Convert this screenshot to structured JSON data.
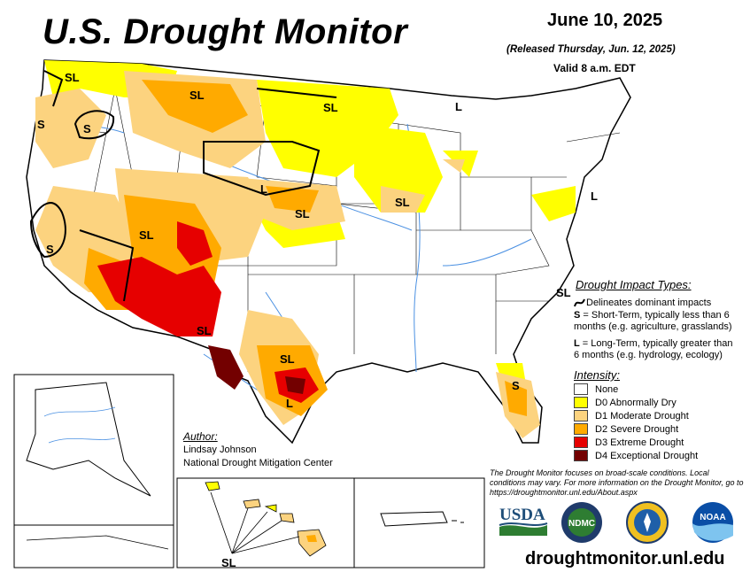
{
  "header": {
    "title": "U.S. Drought Monitor",
    "date": "June 10, 2025",
    "released": "(Released Thursday, Jun. 12, 2025)",
    "valid": "Valid 8 a.m. EDT"
  },
  "impact_legend": {
    "title": "Drought Impact Types:",
    "line_desc": "Delineates dominant impacts",
    "s_key": "S",
    "s_desc": " = Short-Term, typically less than 6 months (e.g. agriculture, grasslands)",
    "l_key": "L",
    "l_desc": " = Long-Term, typically greater than 6 months (e.g. hydrology, ecology)"
  },
  "intensity_legend": {
    "title": "Intensity:",
    "items": [
      {
        "label": "None",
        "color": "#ffffff"
      },
      {
        "label": "D0 Abnormally Dry",
        "color": "#ffff00"
      },
      {
        "label": "D1 Moderate Drought",
        "color": "#fcd37f"
      },
      {
        "label": "D2 Severe Drought",
        "color": "#ffaa00"
      },
      {
        "label": "D3 Extreme Drought",
        "color": "#e60000"
      },
      {
        "label": "D4 Exceptional Drought",
        "color": "#730000"
      }
    ]
  },
  "author": {
    "title": "Author:",
    "name": "Lindsay Johnson",
    "org": "National Drought Mitigation Center"
  },
  "note": "The Drought Monitor focuses on broad-scale conditions. Local conditions may vary. For more information on the Drought Monitor, go to https://droughtmonitor.unl.edu/About.aspx",
  "url": "droughtmonitor.unl.edu",
  "logos": {
    "usda": "USDA",
    "ndmc": "NDMC",
    "noaa": "NOAA"
  },
  "map_labels": {
    "sl_wa": "SL",
    "s_wa": "S",
    "s_or": "S",
    "sl_mt": "SL",
    "sl_mn": "SL",
    "l_mi": "L",
    "l_sd": "L",
    "sl_ne": "SL",
    "sl_ia": "SL",
    "sl_ut": "SL",
    "s_ca": "S",
    "sl_nm": "SL",
    "sl_tx": "SL",
    "l_tx": "L",
    "l_ny": "L",
    "sl_nc": "SL",
    "s_fl": "S",
    "sl_hi": "SL"
  }
}
